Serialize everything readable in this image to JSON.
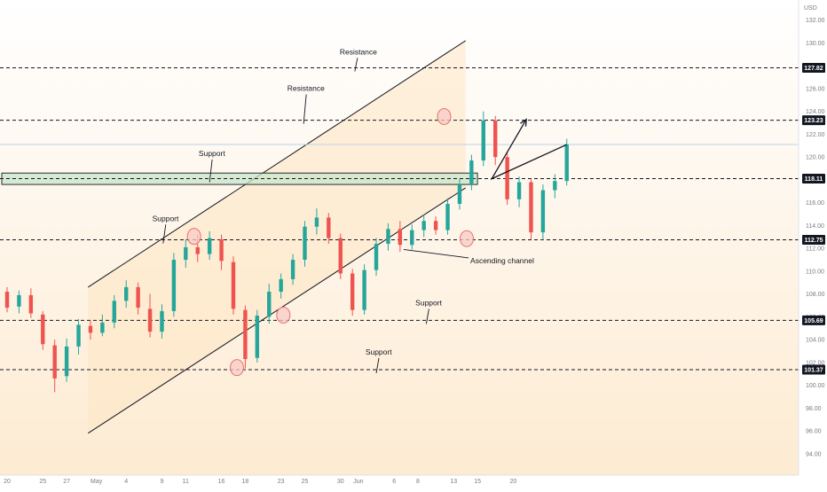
{
  "chart_data": {
    "type": "candlestick",
    "currency": "USD",
    "price_axis": {
      "ticks": [
        94,
        96,
        98,
        100,
        102,
        104,
        106,
        108,
        110,
        112,
        114,
        116,
        118,
        120,
        122,
        124,
        126,
        128,
        130,
        132
      ],
      "tick_labels": [
        "94.00",
        "96.00",
        "98.00",
        "100.00",
        "102.00",
        "104.00",
        "106.00",
        "108.00",
        "110.00",
        "112.00",
        "114.00",
        "116.00",
        "118.00",
        "120.00",
        "122.00",
        "124.00",
        "126.00",
        "128.00",
        "130.00",
        "132.00"
      ],
      "range": [
        92.9,
        133.3
      ]
    },
    "time_axis": {
      "ticks": [
        {
          "label": "20",
          "index": 0
        },
        {
          "label": "25",
          "index": 3
        },
        {
          "label": "27",
          "index": 5
        },
        {
          "label": "May",
          "index": 7.5
        },
        {
          "label": "4",
          "index": 10
        },
        {
          "label": "9",
          "index": 13
        },
        {
          "label": "11",
          "index": 15
        },
        {
          "label": "16",
          "index": 18
        },
        {
          "label": "18",
          "index": 20
        },
        {
          "label": "23",
          "index": 23
        },
        {
          "label": "25",
          "index": 25
        },
        {
          "label": "30",
          "index": 28
        },
        {
          "label": "Jun",
          "index": 29.5
        },
        {
          "label": "6",
          "index": 32.5
        },
        {
          "label": "8",
          "index": 34.5
        },
        {
          "label": "13",
          "index": 37.5
        },
        {
          "label": "15",
          "index": 39.5
        },
        {
          "label": "20",
          "index": 42.5
        }
      ]
    },
    "levels": [
      {
        "value": 127.82,
        "label": "127.82"
      },
      {
        "value": 123.23,
        "label": "123.23"
      },
      {
        "value": 118.11,
        "label": "118.11"
      },
      {
        "value": 112.75,
        "label": "112.75"
      },
      {
        "value": 105.69,
        "label": "105.69"
      },
      {
        "value": 101.37,
        "label": "101.37"
      }
    ],
    "current_price": 121.1,
    "support_zone": [
      117.6,
      118.6
    ],
    "channel": {
      "upper": [
        {
          "index": 6.8,
          "price": 108.6
        },
        {
          "index": 38.5,
          "price": 130.2
        }
      ],
      "lower": [
        {
          "index": 6.8,
          "price": 95.8
        },
        {
          "index": 38.5,
          "price": 117.3
        }
      ]
    },
    "candles": [
      {
        "o": 108.2,
        "h": 108.6,
        "l": 106.4,
        "c": 106.8
      },
      {
        "o": 106.9,
        "h": 108.3,
        "l": 106.3,
        "c": 107.9
      },
      {
        "o": 107.9,
        "h": 108.5,
        "l": 105.9,
        "c": 106.3
      },
      {
        "o": 106.2,
        "h": 106.5,
        "l": 103.1,
        "c": 103.6
      },
      {
        "o": 103.5,
        "h": 104.0,
        "l": 99.4,
        "c": 100.6
      },
      {
        "o": 100.8,
        "h": 104.1,
        "l": 100.3,
        "c": 103.4
      },
      {
        "o": 103.4,
        "h": 105.8,
        "l": 102.7,
        "c": 105.3
      },
      {
        "o": 105.2,
        "h": 105.7,
        "l": 104.0,
        "c": 104.6
      },
      {
        "o": 104.6,
        "h": 106.2,
        "l": 104.3,
        "c": 105.5
      },
      {
        "o": 105.5,
        "h": 107.9,
        "l": 105.0,
        "c": 107.4
      },
      {
        "o": 107.4,
        "h": 109.2,
        "l": 106.8,
        "c": 108.6
      },
      {
        "o": 108.6,
        "h": 109.0,
        "l": 106.2,
        "c": 106.8
      },
      {
        "o": 106.7,
        "h": 108.0,
        "l": 104.2,
        "c": 104.7
      },
      {
        "o": 104.7,
        "h": 107.1,
        "l": 104.1,
        "c": 106.5
      },
      {
        "o": 106.5,
        "h": 111.6,
        "l": 106.0,
        "c": 111.0
      },
      {
        "o": 111.0,
        "h": 112.8,
        "l": 110.3,
        "c": 112.1
      },
      {
        "o": 112.1,
        "h": 113.2,
        "l": 110.8,
        "c": 111.5
      },
      {
        "o": 111.5,
        "h": 113.5,
        "l": 111.0,
        "c": 112.9
      },
      {
        "o": 112.8,
        "h": 113.2,
        "l": 110.1,
        "c": 110.9
      },
      {
        "o": 110.8,
        "h": 111.3,
        "l": 106.2,
        "c": 106.7
      },
      {
        "o": 106.6,
        "h": 107.0,
        "l": 101.5,
        "c": 102.3
      },
      {
        "o": 102.4,
        "h": 106.6,
        "l": 102.0,
        "c": 106.1
      },
      {
        "o": 106.0,
        "h": 108.9,
        "l": 105.4,
        "c": 108.2
      },
      {
        "o": 108.2,
        "h": 109.8,
        "l": 107.6,
        "c": 109.3
      },
      {
        "o": 109.3,
        "h": 111.5,
        "l": 108.8,
        "c": 111.0
      },
      {
        "o": 111.0,
        "h": 114.4,
        "l": 110.4,
        "c": 113.9
      },
      {
        "o": 113.9,
        "h": 115.5,
        "l": 113.2,
        "c": 114.7
      },
      {
        "o": 114.7,
        "h": 115.1,
        "l": 112.4,
        "c": 112.9
      },
      {
        "o": 112.9,
        "h": 113.3,
        "l": 109.3,
        "c": 109.8
      },
      {
        "o": 109.8,
        "h": 110.2,
        "l": 106.1,
        "c": 106.6
      },
      {
        "o": 106.6,
        "h": 110.6,
        "l": 106.2,
        "c": 110.1
      },
      {
        "o": 110.1,
        "h": 112.9,
        "l": 109.6,
        "c": 112.4
      },
      {
        "o": 112.4,
        "h": 114.2,
        "l": 111.8,
        "c": 113.7
      },
      {
        "o": 113.7,
        "h": 114.4,
        "l": 111.7,
        "c": 112.3
      },
      {
        "o": 112.3,
        "h": 114.1,
        "l": 111.9,
        "c": 113.6
      },
      {
        "o": 113.6,
        "h": 115.0,
        "l": 113.0,
        "c": 114.4
      },
      {
        "o": 114.4,
        "h": 114.8,
        "l": 113.2,
        "c": 113.6
      },
      {
        "o": 113.6,
        "h": 116.4,
        "l": 113.2,
        "c": 115.9
      },
      {
        "o": 115.9,
        "h": 118.1,
        "l": 115.4,
        "c": 117.6
      },
      {
        "o": 117.6,
        "h": 120.2,
        "l": 117.1,
        "c": 119.7
      },
      {
        "o": 119.7,
        "h": 124.0,
        "l": 119.2,
        "c": 123.2
      },
      {
        "o": 123.2,
        "h": 123.6,
        "l": 119.3,
        "c": 120.0
      },
      {
        "o": 120.0,
        "h": 120.4,
        "l": 115.8,
        "c": 116.3
      },
      {
        "o": 116.3,
        "h": 118.3,
        "l": 115.6,
        "c": 117.8
      },
      {
        "o": 117.8,
        "h": 118.1,
        "l": 112.8,
        "c": 113.4
      },
      {
        "o": 113.4,
        "h": 117.6,
        "l": 112.7,
        "c": 117.1
      },
      {
        "o": 117.1,
        "h": 118.5,
        "l": 116.4,
        "c": 117.9
      },
      {
        "o": 117.9,
        "h": 121.6,
        "l": 117.5,
        "c": 121.1
      }
    ],
    "markers": [
      {
        "index": 15.7,
        "price": 113.05
      },
      {
        "index": 19.3,
        "price": 101.55
      },
      {
        "index": 23.2,
        "price": 106.15
      },
      {
        "index": 36.7,
        "price": 123.55
      },
      {
        "index": 38.6,
        "price": 112.85
      }
    ],
    "projection": [
      {
        "index": 40.7,
        "price": 118.1
      },
      {
        "index": 43.6,
        "price": 123.3
      }
    ],
    "annotations": [
      {
        "text": "Resistance",
        "index": 29.5,
        "price": 129.0,
        "tip_index": 29.2,
        "tip_price": 127.82
      },
      {
        "text": "Resistance",
        "index": 25.1,
        "price": 125.8,
        "tip_index": 24.9,
        "tip_price": 123.23
      },
      {
        "text": "Support",
        "index": 17.2,
        "price": 120.1,
        "tip_index": 17.0,
        "tip_price": 118.11
      },
      {
        "text": "Support",
        "index": 13.3,
        "price": 114.4,
        "tip_index": 13.1,
        "tip_price": 112.75
      },
      {
        "text": "Support",
        "index": 35.4,
        "price": 107.0,
        "tip_index": 35.2,
        "tip_price": 105.69
      },
      {
        "text": "Support",
        "index": 31.2,
        "price": 102.7,
        "tip_index": 31.0,
        "tip_price": 101.37
      }
    ],
    "callout": {
      "text": "Ascending channel",
      "index": 38.9,
      "price": 110.7,
      "tip_index": 33.3,
      "tip_price": 111.9
    },
    "colors": {
      "up": "#26a69a",
      "down": "#ef5350",
      "channel_fill": "#fde5c2",
      "zone_fill": "#c8e6c9",
      "marker_fill": "#f8c9c6",
      "marker_stroke": "#e57373",
      "level_label_bg": "#131722",
      "current_line": "#bcd3ec",
      "line": "#131722",
      "axis_text": "#787b86"
    }
  }
}
